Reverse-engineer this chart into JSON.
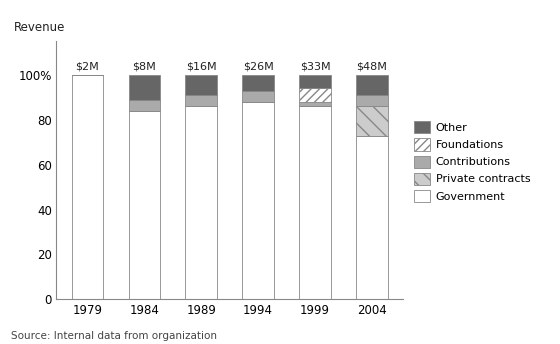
{
  "years": [
    "1979",
    "1984",
    "1989",
    "1994",
    "1999",
    "2004"
  ],
  "revenue_labels": [
    "$2M",
    "$8M",
    "$16M",
    "$26M",
    "$33M",
    "$48M"
  ],
  "draw_order": [
    "Government",
    "Private contracts",
    "Contributions",
    "Foundations",
    "Other"
  ],
  "data": {
    "Government": [
      100,
      84,
      86,
      88,
      86,
      73
    ],
    "Private contracts": [
      0,
      0,
      0,
      0,
      0,
      13
    ],
    "Contributions": [
      0,
      5,
      5,
      5,
      2,
      5
    ],
    "Foundations": [
      0,
      0,
      0,
      0,
      6,
      0
    ],
    "Other": [
      0,
      11,
      9,
      7,
      6,
      9
    ]
  },
  "colors": {
    "Government": "#ffffff",
    "Private contracts": "#cccccc",
    "Contributions": "#aaaaaa",
    "Foundations": "#ffffff",
    "Other": "#666666"
  },
  "hatches": {
    "Government": "",
    "Private contracts": "\\\\",
    "Contributions": "",
    "Foundations": "////",
    "Other": ""
  },
  "bar_edgecolor": "#888888",
  "bar_width": 0.55,
  "title": "Revenue",
  "ylim": [
    0,
    115
  ],
  "yticks": [
    0,
    20,
    40,
    60,
    80,
    100
  ],
  "ytick_labels": [
    "0",
    "20",
    "40",
    "60",
    "80",
    "100%"
  ],
  "source_text": "Source: Internal data from organization",
  "legend_order": [
    "Other",
    "Foundations",
    "Contributions",
    "Private contracts",
    "Government"
  ]
}
